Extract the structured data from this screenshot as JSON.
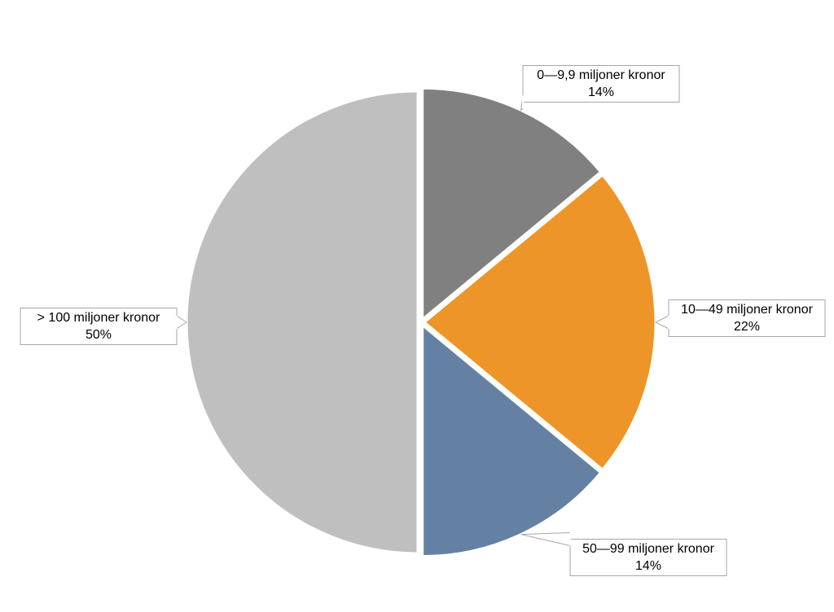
{
  "chart_data": {
    "type": "pie",
    "categories": [
      "0—9,9 miljoner kronor",
      "10—49 miljoner kronor",
      "50—99 miljoner kronor",
      "> 100 miljoner kronor"
    ],
    "values": [
      14,
      22,
      14,
      50
    ],
    "value_labels": [
      "14%",
      "22%",
      "14%",
      "50%"
    ],
    "colors": [
      "#808080",
      "#ed9528",
      "#6481a3",
      "#bfbfbf"
    ]
  }
}
